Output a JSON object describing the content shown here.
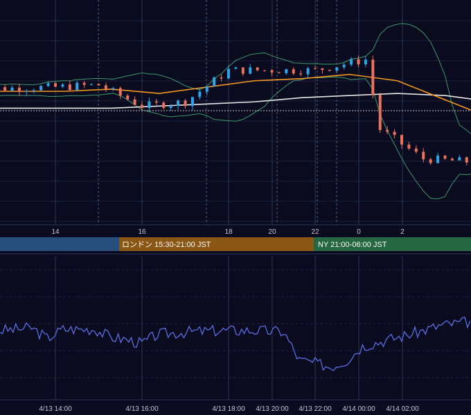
{
  "theme": {
    "background": "#0b0b1f",
    "grid": "#1c2340",
    "grid_vertical_solid": "#2c3555",
    "grid_vertical_dashed": "#58607a",
    "candle_up": "#2fa4e7",
    "candle_down": "#e8735f",
    "bollinger": "#3a9a6a",
    "ma_fast": "#f59a23",
    "ma_slow": "#e8e8e8",
    "price_line": "#c9c9c9",
    "oscillator": "#5b6ee1",
    "session_tokyo": "#274d7d",
    "session_london": "#8a5715",
    "session_ny": "#246741"
  },
  "main_axis": {
    "ticks": [
      "14",
      "16",
      "18",
      "20",
      "22",
      "0",
      "2"
    ]
  },
  "sessions": [
    {
      "name": "tokyo",
      "label": ""
    },
    {
      "name": "london",
      "label": "ロンドン 15:30-21:00 JST"
    },
    {
      "name": "ny",
      "label": "NY 21:00-06:00 JST"
    }
  ],
  "sub_axis": {
    "ticks": [
      "4/13 14:00",
      "4/13 16:00",
      "4/13 18:00",
      "4/13 20:00",
      "4/13 22:00",
      "4/14 00:00",
      "4/14 02:00"
    ]
  },
  "chart_data": {
    "type": "candlestick",
    "time_start": "4/13 12:00",
    "time_end": "4/14 03:30",
    "candle_interval": "10 min",
    "y_units": "relative price (0 = bottom of price pane, 100 = top)",
    "grid": true,
    "candles_summary": [
      {
        "time": "4/13 12:00",
        "close": 61
      },
      {
        "time": "4/13 14:00",
        "close": 62
      },
      {
        "time": "4/13 15:00",
        "close": 63
      },
      {
        "time": "4/13 16:00",
        "close": 53
      },
      {
        "time": "4/13 17:00",
        "close": 55
      },
      {
        "time": "4/13 18:00",
        "close": 70
      },
      {
        "time": "4/13 20:00",
        "close": 70
      },
      {
        "time": "4/13 21:10",
        "close": 75
      },
      {
        "time": "4/13 21:30",
        "close": 42
      },
      {
        "time": "4/13 22:30",
        "close": 28
      },
      {
        "time": "4/14 00:00",
        "close": 26
      },
      {
        "time": "4/14 01:00",
        "close": 35
      },
      {
        "time": "4/14 02:00",
        "close": 45
      },
      {
        "time": "4/14 03:30",
        "close": 54
      }
    ],
    "ma_fast": [
      [
        0,
        60
      ],
      [
        2,
        60
      ],
      [
        3,
        61
      ],
      [
        4,
        59
      ],
      [
        5,
        62
      ],
      [
        6,
        65
      ],
      [
        7,
        66
      ],
      [
        8,
        68
      ],
      [
        9,
        65
      ],
      [
        10,
        56
      ],
      [
        11,
        47
      ],
      [
        12,
        41
      ],
      [
        13,
        38
      ],
      [
        14,
        36
      ]
    ],
    "ma_slow": [
      [
        0,
        52
      ],
      [
        2,
        52
      ],
      [
        3,
        52
      ],
      [
        4,
        53
      ],
      [
        5,
        54
      ],
      [
        6,
        55
      ],
      [
        7,
        57
      ],
      [
        8,
        58
      ],
      [
        9,
        59
      ],
      [
        10,
        58
      ],
      [
        11,
        55
      ],
      [
        12,
        55
      ],
      [
        13,
        55
      ],
      [
        14,
        55
      ]
    ],
    "oscillator": [
      [
        0,
        48
      ],
      [
        1,
        50
      ],
      [
        1.5,
        42
      ],
      [
        2,
        49
      ],
      [
        3,
        49
      ],
      [
        3.5,
        43
      ],
      [
        4,
        41
      ],
      [
        4.5,
        38
      ],
      [
        5,
        45
      ],
      [
        6,
        47
      ],
      [
        7,
        48
      ],
      [
        8,
        48
      ],
      [
        9,
        47
      ],
      [
        9.5,
        25
      ],
      [
        10,
        23
      ],
      [
        10.5,
        20
      ],
      [
        11,
        25
      ],
      [
        11.5,
        36
      ],
      [
        12,
        39
      ],
      [
        13,
        45
      ],
      [
        14,
        52
      ],
      [
        15,
        55
      ]
    ]
  }
}
